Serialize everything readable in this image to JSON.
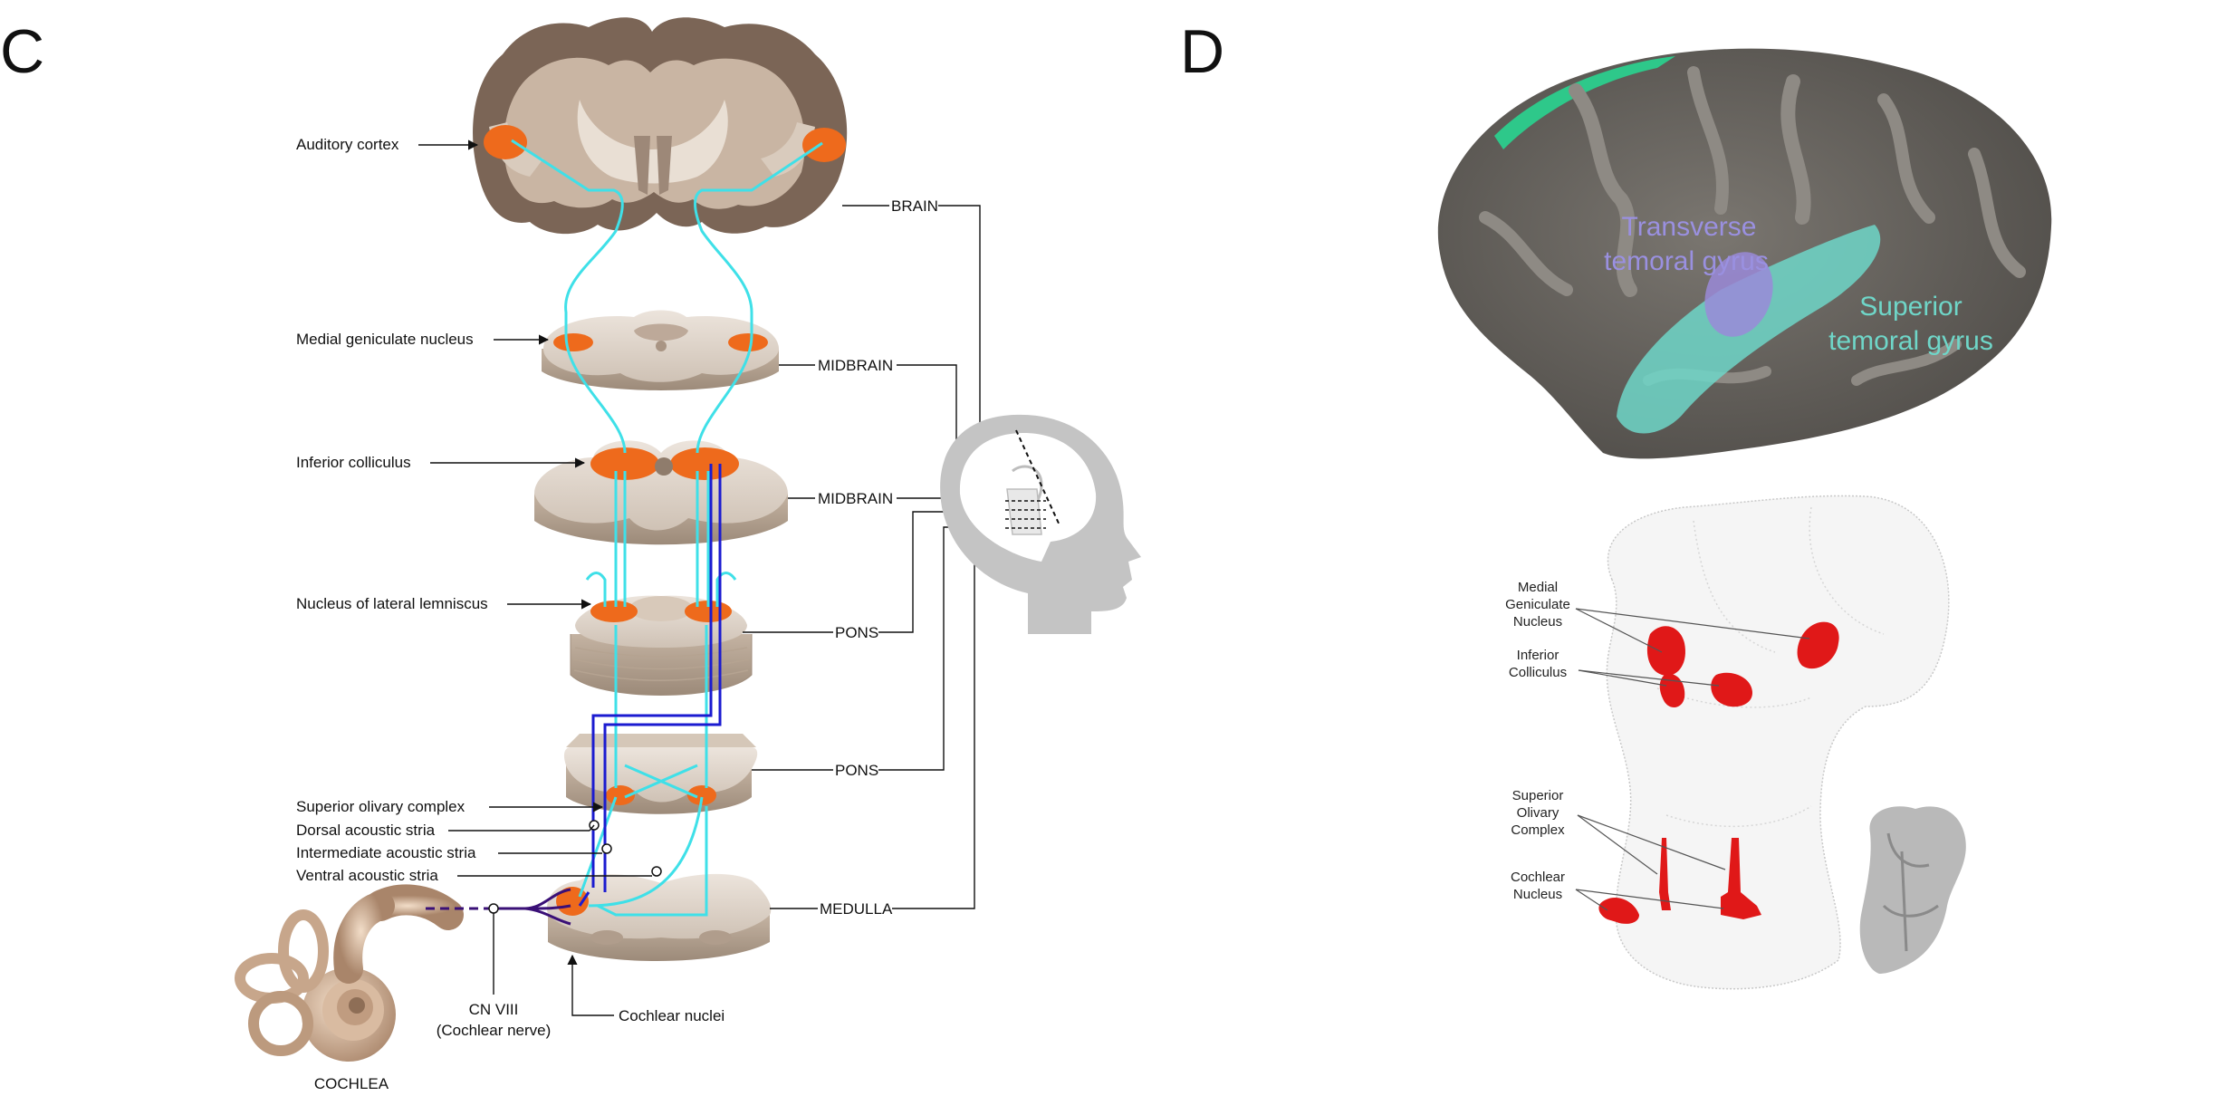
{
  "panels": {
    "left_letter": "C",
    "right_letter": "D"
  },
  "left_labels": {
    "auditory_cortex": "Auditory cortex",
    "medial_geniculate": "Medial geniculate nucleus",
    "inferior_colliculus": "Inferior colliculus",
    "lateral_lemniscus": "Nucleus of lateral lemniscus",
    "superior_olivary": "Superior olivary complex",
    "dorsal_stria": "Dorsal acoustic stria",
    "intermediate_stria": "Intermediate acoustic stria",
    "ventral_stria": "Ventral acoustic stria"
  },
  "region_labels": {
    "brain": "BRAIN",
    "midbrain_1": "MIDBRAIN",
    "midbrain_2": "MIDBRAIN",
    "pons_1": "PONS",
    "pons_2": "PONS",
    "medulla": "MEDULLA"
  },
  "bottom_labels": {
    "cn_viii_line1": "CN VIII",
    "cn_viii_line2": "(Cochlear nerve)",
    "cochlear_nuclei": "Cochlear nuclei",
    "cochlea": "COCHLEA"
  },
  "gyrus_labels": {
    "transverse_line1": "Transverse",
    "transverse_line2": "temoral gyrus",
    "superior_line1": "Superior",
    "superior_line2": "temoral gyrus"
  },
  "nucleus_labels": {
    "mgn_line1": "Medial",
    "mgn_line2": "Geniculate",
    "mgn_line3": "Nucleus",
    "ic_line1": "Inferior",
    "ic_line2": "Colliculus",
    "soc_line1": "Superior",
    "soc_line2": "Olivary",
    "soc_line3": "Complex",
    "cn_line1": "Cochlear",
    "cn_line2": "Nucleus"
  },
  "colors": {
    "ipsilateral_pathway": "#3fe0e8",
    "contralateral_pathway": "#1b1bd0",
    "nerve": "#3a1077",
    "nucleus_highlight": "#ee6a1c",
    "superior_temporal": "#6fd6c8",
    "transverse_temporal": "#9a8ad8",
    "nuclei_3d": "#e01818"
  }
}
